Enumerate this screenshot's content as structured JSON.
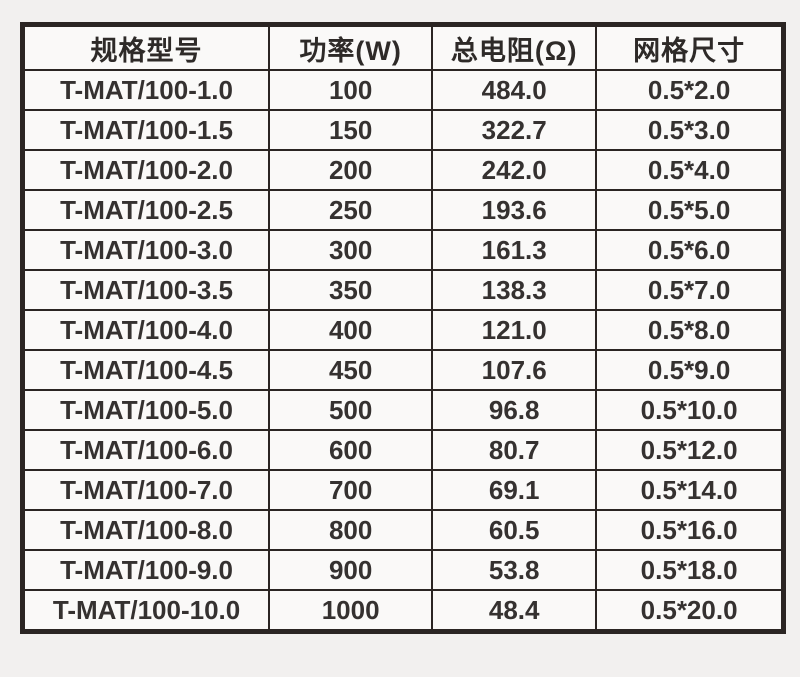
{
  "colors": {
    "page_background": "#f2f0ef",
    "cell_background": "#faf9f8",
    "border": "#2b2523",
    "text": "#353130"
  },
  "table": {
    "columns": [
      "规格型号",
      "功率(W)",
      "总电阻(Ω)",
      "网格尺寸"
    ],
    "rows": [
      {
        "model": "T-MAT/100-1.0",
        "power": "100",
        "resistance": "484.0",
        "grid": "0.5*2.0"
      },
      {
        "model": "T-MAT/100-1.5",
        "power": "150",
        "resistance": "322.7",
        "grid": "0.5*3.0"
      },
      {
        "model": "T-MAT/100-2.0",
        "power": "200",
        "resistance": "242.0",
        "grid": "0.5*4.0"
      },
      {
        "model": "T-MAT/100-2.5",
        "power": "250",
        "resistance": "193.6",
        "grid": "0.5*5.0"
      },
      {
        "model": "T-MAT/100-3.0",
        "power": "300",
        "resistance": "161.3",
        "grid": "0.5*6.0"
      },
      {
        "model": "T-MAT/100-3.5",
        "power": "350",
        "resistance": "138.3",
        "grid": "0.5*7.0"
      },
      {
        "model": "T-MAT/100-4.0",
        "power": "400",
        "resistance": "121.0",
        "grid": "0.5*8.0"
      },
      {
        "model": "T-MAT/100-4.5",
        "power": "450",
        "resistance": "107.6",
        "grid": "0.5*9.0"
      },
      {
        "model": "T-MAT/100-5.0",
        "power": "500",
        "resistance": "96.8",
        "grid": "0.5*10.0"
      },
      {
        "model": "T-MAT/100-6.0",
        "power": "600",
        "resistance": "80.7",
        "grid": "0.5*12.0"
      },
      {
        "model": "T-MAT/100-7.0",
        "power": "700",
        "resistance": "69.1",
        "grid": "0.5*14.0"
      },
      {
        "model": "T-MAT/100-8.0",
        "power": "800",
        "resistance": "60.5",
        "grid": "0.5*16.0"
      },
      {
        "model": "T-MAT/100-9.0",
        "power": "900",
        "resistance": "53.8",
        "grid": "0.5*18.0"
      },
      {
        "model": "T-MAT/100-10.0",
        "power": "1000",
        "resistance": "48.4",
        "grid": "0.5*20.0"
      }
    ]
  }
}
